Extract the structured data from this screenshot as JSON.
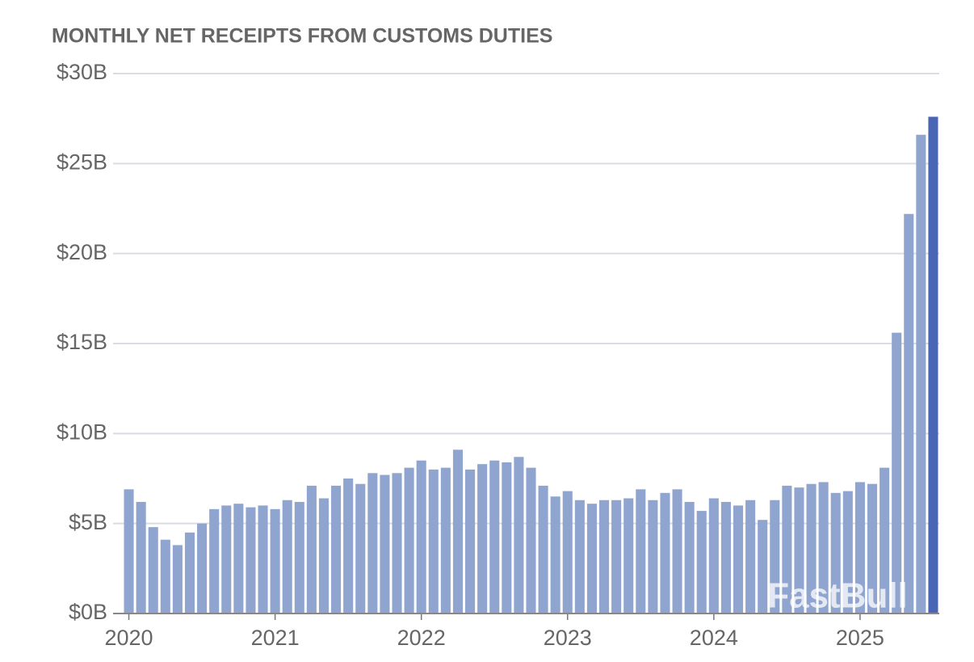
{
  "chart_data": {
    "type": "bar",
    "title": "MONTHLY NET RECEIPTS FROM CUSTOMS DUTIES",
    "watermark": "FastBull",
    "categories": [
      "2020",
      null,
      null,
      null,
      null,
      null,
      null,
      null,
      null,
      null,
      null,
      null,
      "2021",
      null,
      null,
      null,
      null,
      null,
      null,
      null,
      null,
      null,
      null,
      null,
      "2022",
      null,
      null,
      null,
      null,
      null,
      null,
      null,
      null,
      null,
      null,
      null,
      "2023",
      null,
      null,
      null,
      null,
      null,
      null,
      null,
      null,
      null,
      null,
      null,
      "2024",
      null,
      null,
      null,
      null,
      null,
      null,
      null,
      null,
      null,
      null,
      null,
      "2025",
      null,
      null,
      null,
      null,
      null,
      null
    ],
    "values": [
      6.9,
      6.2,
      4.8,
      4.1,
      3.8,
      4.5,
      5.0,
      5.8,
      6.0,
      6.1,
      5.9,
      6.0,
      5.8,
      6.3,
      6.2,
      7.1,
      6.4,
      7.1,
      7.5,
      7.2,
      7.8,
      7.7,
      7.8,
      8.1,
      8.5,
      8.0,
      8.1,
      9.1,
      8.0,
      8.3,
      8.5,
      8.4,
      8.7,
      8.1,
      7.1,
      6.5,
      6.8,
      6.3,
      6.1,
      6.3,
      6.3,
      6.4,
      6.9,
      6.3,
      6.7,
      6.9,
      6.2,
      5.7,
      6.4,
      6.2,
      6.0,
      6.3,
      5.2,
      6.3,
      7.1,
      7.0,
      7.2,
      7.3,
      6.7,
      6.8,
      7.3,
      7.2,
      8.1,
      15.6,
      22.2,
      26.6,
      27.6
    ],
    "color": "#8fa5cf",
    "last_bar_color": "#4a65b4",
    "ylim": [
      0,
      30
    ],
    "yticks": [
      {
        "value": 0,
        "label": "$0B"
      },
      {
        "value": 5,
        "label": "$5B"
      },
      {
        "value": 10,
        "label": "$10B"
      },
      {
        "value": 15,
        "label": "$15B"
      },
      {
        "value": 20,
        "label": "$20B"
      },
      {
        "value": 25,
        "label": "$25B"
      },
      {
        "value": 30,
        "label": "$30B"
      }
    ],
    "grid": true
  }
}
